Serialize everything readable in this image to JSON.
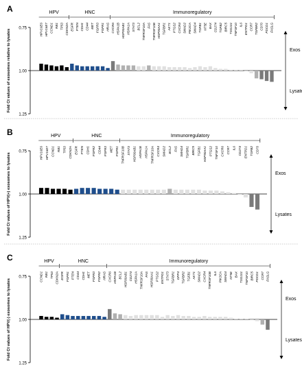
{
  "colors": {
    "hpv": "#000000",
    "hnc": "#1f4e8c",
    "immuno_light": "#e0e0e0",
    "immuno_mid": "#b0b0b0",
    "immuno_dark": "#7a7a7a"
  },
  "chart_data": [
    {
      "type": "bar",
      "panel": "A",
      "ylabel": "Fold Ct values of exosomes relative to lysates",
      "y_ticks": [
        "0.75",
        "1.00",
        "1.25"
      ],
      "ylim": [
        0.75,
        1.25
      ],
      "baseline": 1.0,
      "y_inverted": true,
      "group_labels": [
        "HPV",
        "HNC",
        "Immunoregulatory"
      ],
      "side_labels": {
        "top": "Exos",
        "bottom": "Lysates"
      },
      "categories": [
        "HPV16E6",
        "HPV16E7",
        "CCND1",
        "RB1",
        "TP53",
        "CDKN2A",
        "EGFR",
        "PTEN",
        "CDH1",
        "CD44",
        "MET",
        "FGFR3",
        "FGFR1",
        "HRAS",
        "CXCR6",
        "HSPA1B",
        "HSP90AB1",
        "HSPA1A",
        "STAT3",
        "BCL2",
        "TNFRSF10A",
        "FAS",
        "TNFRSF10B",
        "HSP90AA1",
        "TGFBR1",
        "AKT1",
        "PTGS2",
        "CXCR4",
        "SMAD2",
        "PIK3CA",
        "SMAD4",
        "TGFB1",
        "NT5E",
        "BAX",
        "CD274",
        "TGFB2",
        "BIRC5",
        "TSG101",
        "TNFSF10",
        "IL6",
        "ENTPD1",
        "CCR7",
        "TGFBR2",
        "CD70",
        "PDCD1",
        "FASLG"
      ],
      "groups": [
        "hpv",
        "hpv",
        "hpv",
        "hpv",
        "hpv",
        "hpv",
        "hnc",
        "hnc",
        "hnc",
        "hnc",
        "hnc",
        "hnc",
        "hnc",
        "hnc",
        "imm",
        "imm",
        "imm",
        "imm",
        "imm",
        "imm",
        "imm",
        "imm",
        "imm",
        "imm",
        "imm",
        "imm",
        "imm",
        "imm",
        "imm",
        "imm",
        "imm",
        "imm",
        "imm",
        "imm",
        "imm",
        "imm",
        "imm",
        "imm",
        "imm",
        "imm",
        "imm",
        "imm",
        "imm",
        "imm",
        "imm",
        "imm"
      ],
      "values": [
        0.96,
        0.965,
        0.97,
        0.975,
        0.97,
        0.98,
        0.96,
        0.97,
        0.975,
        0.975,
        0.975,
        0.975,
        0.975,
        0.985,
        0.945,
        0.965,
        0.97,
        0.97,
        0.97,
        0.975,
        0.975,
        0.97,
        0.975,
        0.975,
        0.975,
        0.98,
        0.98,
        0.98,
        0.98,
        0.985,
        0.98,
        0.975,
        0.98,
        0.975,
        0.985,
        0.99,
        0.99,
        0.995,
        0.995,
        0.995,
        1.005,
        1.015,
        1.045,
        1.05,
        1.06,
        1.065
      ]
    },
    {
      "type": "bar",
      "panel": "B",
      "ylabel": "Fold Ct values of HPV(+) exosomes to lysates",
      "y_ticks": [
        "0.75",
        "1.00",
        "1.25"
      ],
      "ylim": [
        0.75,
        1.25
      ],
      "baseline": 1.0,
      "y_inverted": true,
      "group_labels": [
        "HPV",
        "HNC",
        "Immunoregulatory"
      ],
      "side_labels": {
        "top": "Exos",
        "bottom": "Lysates"
      },
      "categories": [
        "HPV16E6",
        "HPV16E7",
        "CCND1",
        "RB1",
        "TP53",
        "CDKN2A",
        "EGFR",
        "PTEN",
        "CDH1",
        "FGFR2",
        "CD44",
        "FGFR3",
        "MET",
        "FGFR1",
        "TNFRSF10B",
        "STAT3",
        "HSP90AB1",
        "HSPA1B",
        "HSPA1A",
        "TNFRSF10A",
        "CXCR4",
        "SMAD2",
        "BCL2",
        "FAS",
        "SMAD4",
        "TGFBR1",
        "BIRC5",
        "TGFB1",
        "HSP90AA1",
        "PTGS2",
        "TNFSF10",
        "CXCR6",
        "CCR7",
        "IL6",
        "CD274",
        "ENTPD1",
        "TGFB2",
        "CD70"
      ],
      "groups": [
        "hpv",
        "hpv",
        "hpv",
        "hpv",
        "hpv",
        "hpv",
        "hnc",
        "hnc",
        "hnc",
        "hnc",
        "hnc",
        "hnc",
        "hnc",
        "hnc",
        "imm",
        "imm",
        "imm",
        "imm",
        "imm",
        "imm",
        "imm",
        "imm",
        "imm",
        "imm",
        "imm",
        "imm",
        "imm",
        "imm",
        "imm",
        "imm",
        "imm",
        "imm",
        "imm",
        "imm",
        "imm",
        "imm",
        "imm",
        "imm"
      ],
      "values": [
        0.965,
        0.965,
        0.97,
        0.97,
        0.97,
        0.975,
        0.97,
        0.965,
        0.965,
        0.965,
        0.97,
        0.97,
        0.97,
        0.975,
        0.975,
        0.975,
        0.975,
        0.975,
        0.975,
        0.975,
        0.975,
        0.975,
        0.97,
        0.975,
        0.975,
        0.975,
        0.975,
        0.975,
        0.98,
        0.98,
        0.98,
        0.985,
        0.99,
        0.995,
        1.005,
        1.02,
        1.075,
        1.09
      ]
    },
    {
      "type": "bar",
      "panel": "C",
      "ylabel": "Fold Ct values of HPV(-) exosomes to lysates",
      "y_ticks": [
        "0.75",
        "1.00",
        "1.25"
      ],
      "ylim": [
        0.75,
        1.25
      ],
      "baseline": 1.0,
      "y_inverted": true,
      "group_labels": [
        "HPV",
        "HNC",
        "Immunoregulatory"
      ],
      "side_labels": {
        "top": "Exos",
        "bottom": "Lysates"
      },
      "categories": [
        "CCND1",
        "RB1",
        "TP53",
        "CDKN2A",
        "EGFR",
        "FGFR1",
        "PTEN",
        "CD44",
        "CDH1",
        "MET",
        "FGFR3",
        "FGFR2",
        "HRAS",
        "CXCR6",
        "HSPA1B",
        "BCL2",
        "HSP90AB1",
        "CD274",
        "HSPA1A",
        "TNFRSF10A",
        "FAS",
        "HSP90AA1",
        "PTGS2",
        "ENTPD1",
        "STAT3",
        "TGFBR1",
        "DPP4",
        "TGFBR2",
        "TGFB1",
        "AKT1",
        "SMAD2",
        "CXCR4",
        "TNFRSF10B",
        "IL6",
        "PIK3CA",
        "SMAD4",
        "NT5E",
        "BAX",
        "TSG101",
        "TNFSF10",
        "BIRC5",
        "PDCD1",
        "CCR7",
        "FASLG"
      ],
      "groups": [
        "hpv",
        "hpv",
        "hpv",
        "hpv",
        "hnc",
        "hnc",
        "hnc",
        "hnc",
        "hnc",
        "hnc",
        "hnc",
        "hnc",
        "hnc",
        "imm",
        "imm",
        "imm",
        "imm",
        "imm",
        "imm",
        "imm",
        "imm",
        "imm",
        "imm",
        "imm",
        "imm",
        "imm",
        "imm",
        "imm",
        "imm",
        "imm",
        "imm",
        "imm",
        "imm",
        "imm",
        "imm",
        "imm",
        "imm",
        "imm",
        "imm",
        "imm",
        "imm",
        "imm",
        "imm",
        "imm"
      ],
      "values": [
        0.98,
        0.985,
        0.985,
        0.99,
        0.97,
        0.975,
        0.98,
        0.98,
        0.98,
        0.98,
        0.98,
        0.98,
        0.985,
        0.94,
        0.965,
        0.97,
        0.975,
        0.98,
        0.975,
        0.975,
        0.975,
        0.975,
        0.975,
        0.985,
        0.975,
        0.98,
        0.975,
        0.98,
        0.98,
        0.985,
        0.985,
        0.98,
        0.985,
        0.985,
        0.985,
        0.985,
        0.99,
        0.995,
        0.995,
        0.995,
        1.005,
        1.01,
        1.03,
        1.06
      ]
    }
  ]
}
